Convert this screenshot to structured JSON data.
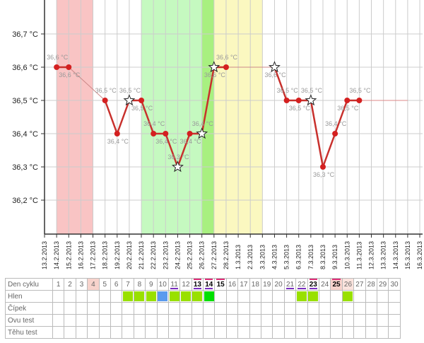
{
  "chart_data": {
    "type": "line",
    "y_ticks": [
      "36,2 °C",
      "36,3 °C",
      "36,4 °C",
      "36,5 °C",
      "36,6 °C",
      "36,7 °C"
    ],
    "ylim": [
      36.1,
      36.75
    ],
    "dates": [
      "13.2.2013",
      "14.2.2013",
      "15.2.2013",
      "16.2.2013",
      "17.2.2013",
      "18.2.2013",
      "19.2.2013",
      "20.2.2013",
      "21.2.2013",
      "22.2.2013",
      "23.2.2013",
      "24.2.2013",
      "25.2.2013",
      "26.2.2013",
      "27.2.2013",
      "28.2.2013",
      "1.3.2013",
      "2.3.2013",
      "3.3.2013",
      "4.3.2013",
      "5.3.2013",
      "6.3.2013",
      "7.3.2013",
      "8.3.2013",
      "9.3.2013",
      "10.3.2013",
      "11.3.2013",
      "12.3.2013",
      "13.3.2013",
      "14.3.2013",
      "15.3.2013",
      "16.3.2013"
    ],
    "points": [
      {
        "date": "14.2.2013",
        "value": 36.6,
        "label": "36,6 °C",
        "star": false
      },
      {
        "date": "15.2.2013",
        "value": 36.6,
        "label": "36,6 °C",
        "star": false
      },
      {
        "date": "18.2.2013",
        "value": 36.5,
        "label": "36,5 °C",
        "star": false
      },
      {
        "date": "19.2.2013",
        "value": 36.4,
        "label": "36,4 °C",
        "star": false
      },
      {
        "date": "20.2.2013",
        "value": 36.5,
        "label": "36,5 °C",
        "star": true
      },
      {
        "date": "21.2.2013",
        "value": 36.5,
        "label": "36,5 °C",
        "star": false
      },
      {
        "date": "22.2.2013",
        "value": 36.4,
        "label": "36,4 °C",
        "star": false
      },
      {
        "date": "23.2.2013",
        "value": 36.4,
        "label": "36,4 °C",
        "star": false
      },
      {
        "date": "24.2.2013",
        "value": 36.3,
        "label": "36,3 °C",
        "star": true
      },
      {
        "date": "25.2.2013",
        "value": 36.4,
        "label": "36,4 °C",
        "star": false
      },
      {
        "date": "26.2.2013",
        "value": 36.4,
        "label": "36,4 °C",
        "star": true
      },
      {
        "date": "27.2.2013",
        "value": 36.6,
        "label": "36,6 °C",
        "star": true
      },
      {
        "date": "28.2.2013",
        "value": 36.6,
        "label": "36,6 °C",
        "star": false
      },
      {
        "date": "4.3.2013",
        "value": 36.6,
        "label": "36,6 °C",
        "star": true
      },
      {
        "date": "5.3.2013",
        "value": 36.5,
        "label": "36,5 °C",
        "star": false
      },
      {
        "date": "6.3.2013",
        "value": 36.5,
        "label": "36,5 °C",
        "star": false
      },
      {
        "date": "7.3.2013",
        "value": 36.5,
        "label": "36,5 °C",
        "star": true
      },
      {
        "date": "8.3.2013",
        "value": 36.3,
        "label": "36,3 °C",
        "star": false
      },
      {
        "date": "9.3.2013",
        "value": 36.4,
        "label": "36,4 °C",
        "star": false
      },
      {
        "date": "10.3.2013",
        "value": 36.5,
        "label": "36,5 °C",
        "star": false
      },
      {
        "date": "11.3.2013",
        "value": 36.5,
        "label": "36,5 °C",
        "star": false
      }
    ],
    "coverline": {
      "value": 36.5,
      "to": "15.3.2013"
    },
    "bands": [
      {
        "from": "14.2.2013",
        "to": "17.2.2013",
        "color": "#f9c4c4"
      },
      {
        "from": "21.2.2013",
        "to": "26.2.2013",
        "color": "#c5f9c0"
      },
      {
        "from": "26.2.2013",
        "to": "27.2.2013",
        "color": "#a8f080"
      },
      {
        "from": "27.2.2013",
        "to": "3.3.2013",
        "color": "#fbf8c0"
      }
    ],
    "line_color": "#c8302c",
    "grid": true
  },
  "table": {
    "rows": [
      "Den cyklu",
      "Hlen",
      "Čípek",
      "Ovu test",
      "Těhu test"
    ],
    "days": [
      1,
      2,
      3,
      4,
      5,
      6,
      7,
      8,
      9,
      10,
      11,
      12,
      13,
      14,
      15,
      16,
      17,
      18,
      19,
      20,
      21,
      22,
      23,
      24,
      25,
      26,
      27,
      28,
      29,
      30
    ],
    "pink_days": [
      4,
      25
    ],
    "light_pink_days": [
      26
    ],
    "bold_days": [
      13,
      14,
      15,
      23,
      25
    ],
    "overline_days": [
      13,
      14,
      15,
      23,
      25
    ],
    "underline_days": [
      11,
      13,
      14,
      21,
      22,
      23
    ],
    "hlen": {
      "7": "#99e000",
      "8": "#99e000",
      "9": "#99e000",
      "10": "#5b9bee",
      "11": "#99e000",
      "12": "#99e000",
      "13": "#99e000",
      "14": "#00e000",
      "22": "#99e000",
      "23": "#99e000",
      "26": "#99e000"
    }
  }
}
